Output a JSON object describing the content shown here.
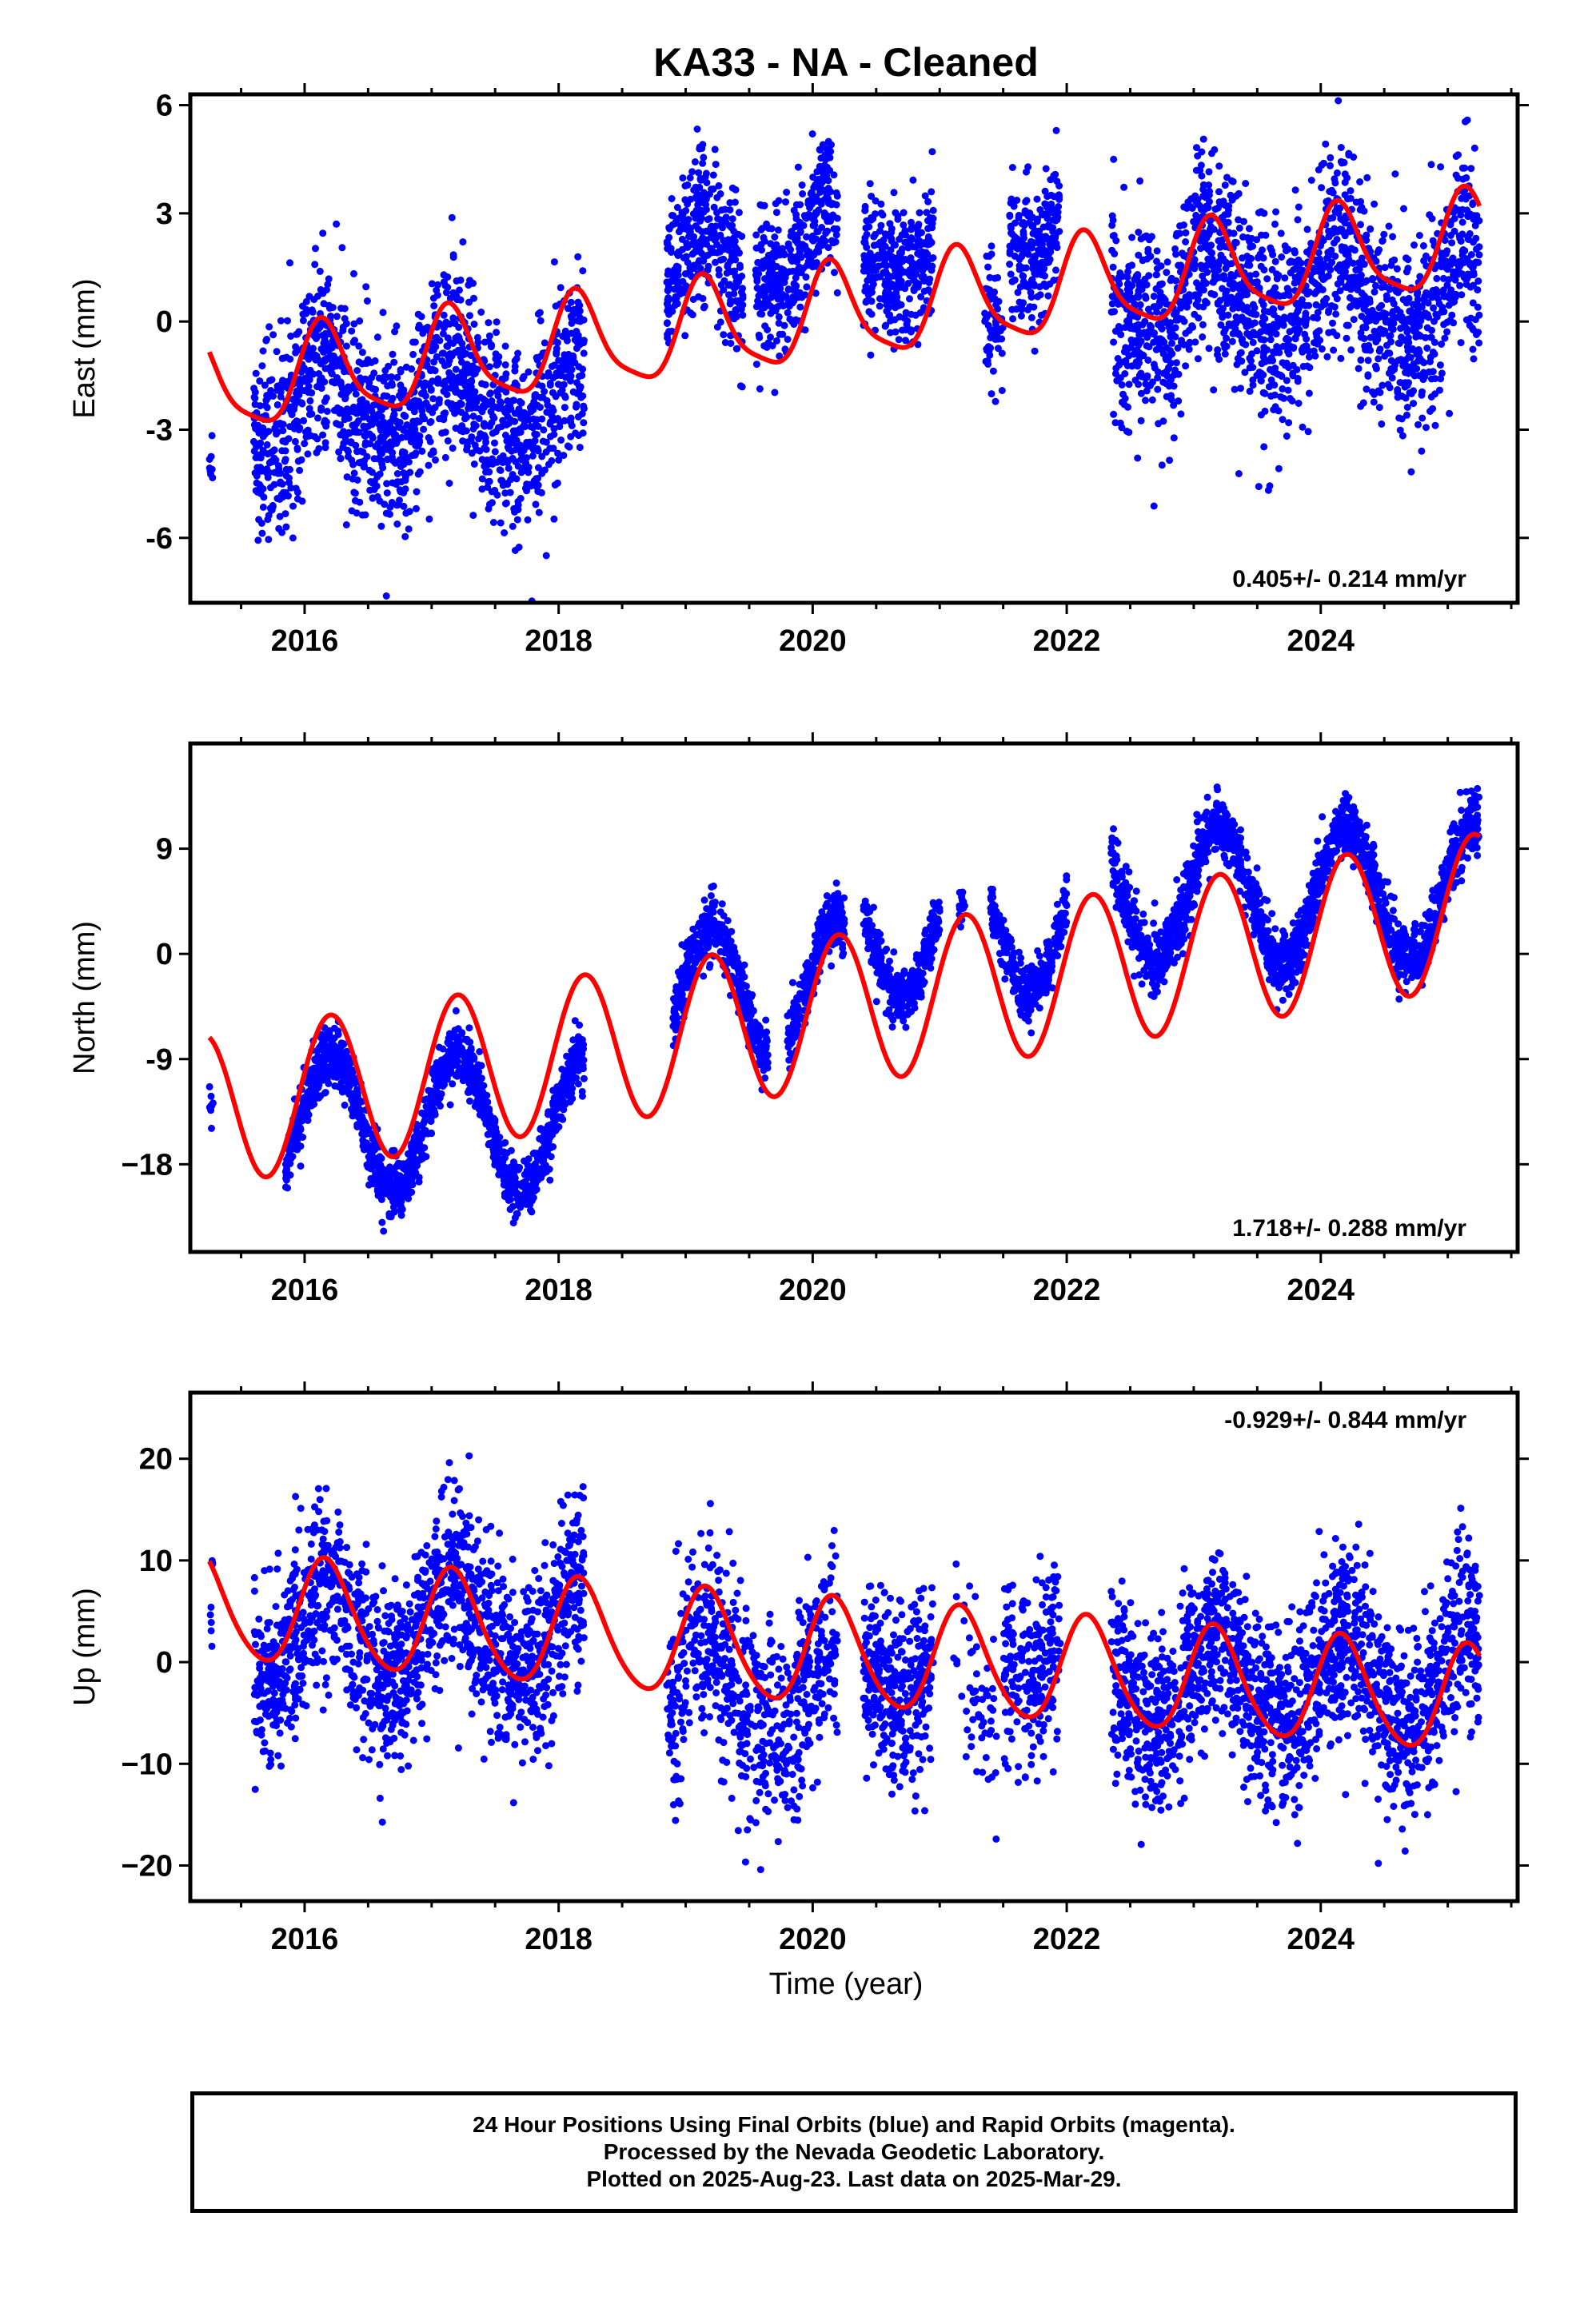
{
  "title": "KA33  - NA - Cleaned",
  "xlabel": "Time (year)",
  "colors": {
    "points": "#0000ff",
    "fit": "#ff0000",
    "frame": "#000000"
  },
  "chart_data": [
    {
      "type": "scatter",
      "component": "east",
      "ylabel": "East (mm)",
      "ylim": [
        -7.8,
        6.3
      ],
      "yticks": [
        -6,
        -3,
        0,
        3,
        6
      ],
      "yticklabels": [
        "-6",
        "-3",
        "0",
        "3",
        "6"
      ],
      "xlim": [
        2015.1,
        2025.55
      ],
      "xticks": [
        2016,
        2018,
        2020,
        2022,
        2024
      ],
      "xticklabels": [
        "2016",
        "2018",
        "2020",
        "2022",
        "2024"
      ],
      "rate_label": "0.405+/- 0.214 mm/yr",
      "rate_position": "bottom-right",
      "fit": {
        "intercept_2020": 0.1,
        "rate": 0.405,
        "annual_amp": 1.3,
        "annual_phase": 0.65,
        "semi_amp": 0.3,
        "semi_phase": 0.2,
        "step_2018": 0.0
      },
      "segments": [
        {
          "start": 2015.25,
          "end": 2015.28,
          "center": -4.8,
          "spread": 1.2,
          "count": 8
        },
        {
          "start": 2015.6,
          "end": 2018.2,
          "center": -2.3,
          "spread": 1.3,
          "count": 1500
        },
        {
          "start": 2018.85,
          "end": 2019.45,
          "center": 1.4,
          "spread": 1.1,
          "count": 350
        },
        {
          "start": 2019.55,
          "end": 2020.2,
          "center": 2.0,
          "spread": 1.0,
          "count": 380
        },
        {
          "start": 2020.4,
          "end": 2020.95,
          "center": 2.2,
          "spread": 0.9,
          "count": 330
        },
        {
          "start": 2021.35,
          "end": 2021.5,
          "center": 0.3,
          "spread": 0.9,
          "count": 60
        },
        {
          "start": 2021.55,
          "end": 2021.95,
          "center": 2.8,
          "spread": 1.0,
          "count": 220
        },
        {
          "start": 2022.35,
          "end": 2025.25,
          "center": 0.7,
          "spread": 1.4,
          "count": 1700
        }
      ]
    },
    {
      "type": "scatter",
      "component": "north",
      "ylabel": "North (mm)",
      "ylim": [
        -25.5,
        18.0
      ],
      "yticks": [
        -18,
        -9,
        0,
        9
      ],
      "yticklabels": [
        "−18",
        "-9",
        "0",
        "9"
      ],
      "xlim": [
        2015.1,
        2025.55
      ],
      "xticks": [
        2016,
        2018,
        2020,
        2022,
        2024
      ],
      "xticklabels": [
        "2016",
        "2018",
        "2020",
        "2022",
        "2024"
      ],
      "rate_label": "1.718+/- 0.288 mm/yr",
      "rate_position": "bottom-right",
      "fit": {
        "intercept_2020": -5.2,
        "rate": 1.718,
        "annual_amp": 6.5,
        "annual_phase": 0.3,
        "semi_amp": 0.0,
        "semi_phase": 0.0,
        "step_2018": 0.0
      },
      "segments": [
        {
          "start": 2015.25,
          "end": 2015.28,
          "center": -18.5,
          "spread": 1.2,
          "count": 8
        },
        {
          "start": 2015.85,
          "end": 2018.2,
          "center": -14.5,
          "spread": 1.3,
          "count": 1400
        },
        {
          "start": 2018.9,
          "end": 2019.65,
          "center": -3.5,
          "spread": 1.3,
          "count": 400
        },
        {
          "start": 2019.8,
          "end": 2020.25,
          "center": -2.8,
          "spread": 1.2,
          "count": 260
        },
        {
          "start": 2020.4,
          "end": 2021.0,
          "center": 2.0,
          "spread": 1.2,
          "count": 330
        },
        {
          "start": 2021.15,
          "end": 2021.2,
          "center": -1.5,
          "spread": 0.8,
          "count": 15
        },
        {
          "start": 2021.4,
          "end": 2022.0,
          "center": 2.5,
          "spread": 1.2,
          "count": 320
        },
        {
          "start": 2022.35,
          "end": 2025.25,
          "center": 5.0,
          "spread": 1.3,
          "count": 1700
        }
      ]
    },
    {
      "type": "scatter",
      "component": "up",
      "ylabel": "Up (mm)",
      "ylim": [
        -23.5,
        26.5
      ],
      "yticks": [
        -20,
        -10,
        0,
        10,
        20
      ],
      "yticklabels": [
        "−20",
        "−10",
        "0",
        "10",
        "20"
      ],
      "xlim": [
        2015.1,
        2025.55
      ],
      "xticks": [
        2016,
        2018,
        2020,
        2022,
        2024
      ],
      "xticklabels": [
        "2016",
        "2018",
        "2020",
        "2022",
        "2024"
      ],
      "rate_label": "-0.929+/- 0.844 mm/yr",
      "rate_position": "top-right",
      "fit": {
        "intercept_2020": 1.0,
        "rate": -0.929,
        "annual_amp": 5.2,
        "annual_phase": 0.5,
        "semi_amp": 0.6,
        "semi_phase": 0.1,
        "step_2018": 0.0
      },
      "segments": [
        {
          "start": 2015.25,
          "end": 2015.28,
          "center": 1.5,
          "spread": 3.5,
          "count": 8
        },
        {
          "start": 2015.6,
          "end": 2018.2,
          "center": 3.0,
          "spread": 4.5,
          "count": 1500
        },
        {
          "start": 2018.85,
          "end": 2020.2,
          "center": -3.0,
          "spread": 5.0,
          "count": 650
        },
        {
          "start": 2020.4,
          "end": 2020.95,
          "center": 0.5,
          "spread": 4.5,
          "count": 330
        },
        {
          "start": 2021.1,
          "end": 2021.45,
          "center": -6.0,
          "spread": 4.5,
          "count": 60
        },
        {
          "start": 2021.5,
          "end": 2021.95,
          "center": 3.0,
          "spread": 4.5,
          "count": 220
        },
        {
          "start": 2022.35,
          "end": 2025.25,
          "center": -2.0,
          "spread": 4.5,
          "count": 1700
        }
      ]
    }
  ],
  "caption": {
    "line1": "24 Hour Positions Using Final Orbits (blue) and Rapid Orbits (magenta).",
    "line2": "Processed by the Nevada Geodetic Laboratory.",
    "line3": "Plotted on 2025-Aug-23. Last data on 2025-Mar-29."
  }
}
